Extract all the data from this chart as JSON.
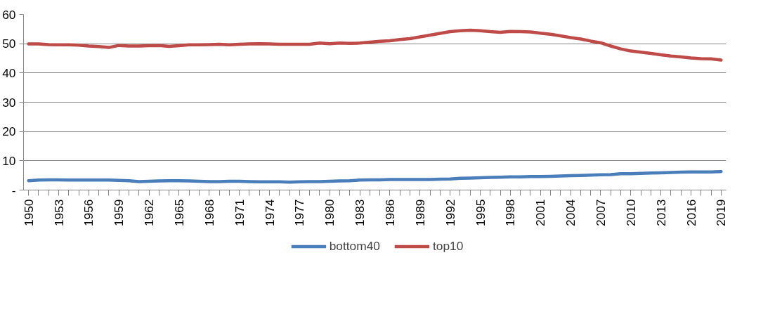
{
  "chart_data": {
    "type": "line",
    "categories": [
      "1950",
      null,
      null,
      "1953",
      null,
      null,
      "1956",
      null,
      null,
      "1959",
      null,
      null,
      "1962",
      null,
      null,
      "1965",
      null,
      null,
      "1968",
      null,
      null,
      "1971",
      null,
      null,
      "1974",
      null,
      null,
      "1977",
      null,
      null,
      "1980",
      null,
      null,
      "1983",
      null,
      null,
      "1986",
      null,
      null,
      "1989",
      null,
      null,
      "1992",
      null,
      null,
      "1995",
      null,
      null,
      "1998",
      null,
      null,
      "2001",
      null,
      null,
      "2004",
      null,
      null,
      "2007",
      null,
      null,
      "2010",
      null,
      null,
      "2013",
      null,
      null,
      "2016",
      null,
      null,
      "2019"
    ],
    "series": [
      {
        "name": "bottom40",
        "color": "#4a7ebb",
        "values": [
          3.2,
          3.4,
          3.5,
          3.5,
          3.4,
          3.4,
          3.4,
          3.4,
          3.4,
          3.3,
          3.2,
          2.9,
          3.0,
          3.1,
          3.2,
          3.2,
          3.1,
          3.0,
          2.9,
          2.9,
          3.0,
          3.0,
          2.9,
          2.8,
          2.8,
          2.8,
          2.7,
          2.8,
          2.9,
          2.9,
          3.0,
          3.1,
          3.2,
          3.4,
          3.5,
          3.5,
          3.6,
          3.6,
          3.6,
          3.6,
          3.6,
          3.7,
          3.8,
          4.0,
          4.1,
          4.2,
          4.3,
          4.4,
          4.5,
          4.5,
          4.6,
          4.6,
          4.7,
          4.8,
          4.9,
          5.0,
          5.1,
          5.2,
          5.3,
          5.6,
          5.6,
          5.7,
          5.8,
          5.9,
          6.0,
          6.1,
          6.2,
          6.2,
          6.2,
          6.3
        ]
      },
      {
        "name": "top10",
        "color": "#be4b48",
        "values": [
          49.9,
          49.9,
          49.7,
          49.6,
          49.6,
          49.5,
          49.2,
          49.0,
          48.7,
          49.4,
          49.2,
          49.2,
          49.3,
          49.4,
          49.1,
          49.3,
          49.6,
          49.6,
          49.7,
          49.8,
          49.6,
          49.8,
          49.9,
          50.0,
          49.9,
          49.8,
          49.8,
          49.8,
          49.8,
          50.2,
          50.0,
          50.2,
          50.1,
          50.2,
          50.5,
          50.8,
          51.0,
          51.4,
          51.7,
          52.3,
          52.9,
          53.5,
          54.1,
          54.4,
          54.6,
          54.4,
          54.1,
          53.9,
          54.2,
          54.1,
          54.0,
          53.6,
          53.2,
          52.7,
          52.1,
          51.6,
          50.9,
          50.3,
          49.2,
          48.2,
          47.5,
          47.1,
          46.7,
          46.2,
          45.8,
          45.5,
          45.1,
          44.9,
          44.8,
          44.4
        ]
      }
    ],
    "ylim": [
      0,
      60
    ],
    "yticks": [
      {
        "value": 0,
        "label": "-"
      },
      10,
      20,
      30,
      40,
      50,
      60
    ],
    "grid": "y",
    "legend": "bottom",
    "line_style": "solid",
    "marker": "none"
  }
}
